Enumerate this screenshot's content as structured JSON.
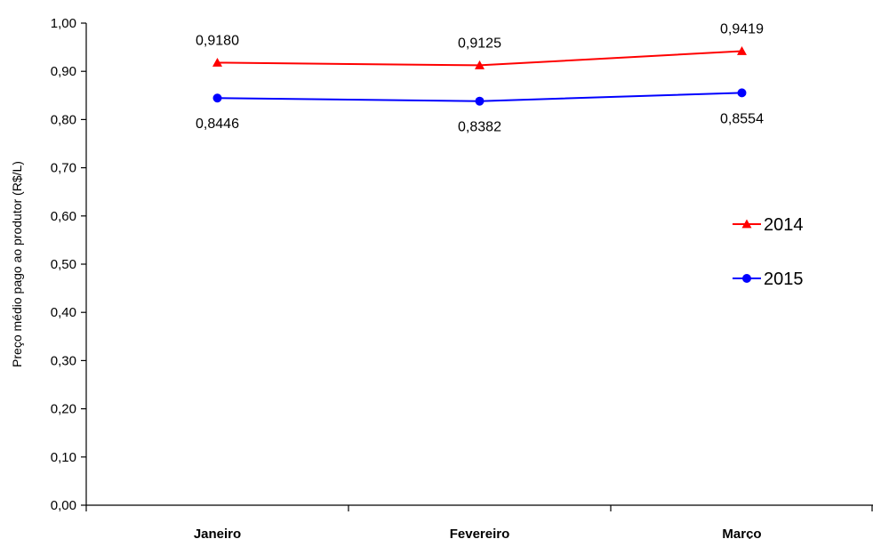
{
  "chart_data": {
    "type": "line",
    "title": "",
    "xlabel": "",
    "ylabel": "Preço médio pago ao produtor (R$/L)",
    "categories": [
      "Janeiro",
      "Fevereiro",
      "Março"
    ],
    "y_ticks": [
      "0,00",
      "0,10",
      "0,20",
      "0,30",
      "0,40",
      "0,50",
      "0,60",
      "0,70",
      "0,80",
      "0,90",
      "1,00"
    ],
    "ylim": [
      0,
      1
    ],
    "grid": false,
    "legend_position": "right",
    "series": [
      {
        "name": "2014",
        "values": [
          0.918,
          0.9125,
          0.9419
        ],
        "labels": [
          "0,9180",
          "0,9125",
          "0,9419"
        ],
        "color": "#ff0000",
        "marker": "triangle"
      },
      {
        "name": "2015",
        "values": [
          0.8446,
          0.8382,
          0.8554
        ],
        "labels": [
          "0,8446",
          "0,8382",
          "0,8554"
        ],
        "color": "#0000ff",
        "marker": "circle"
      }
    ]
  }
}
